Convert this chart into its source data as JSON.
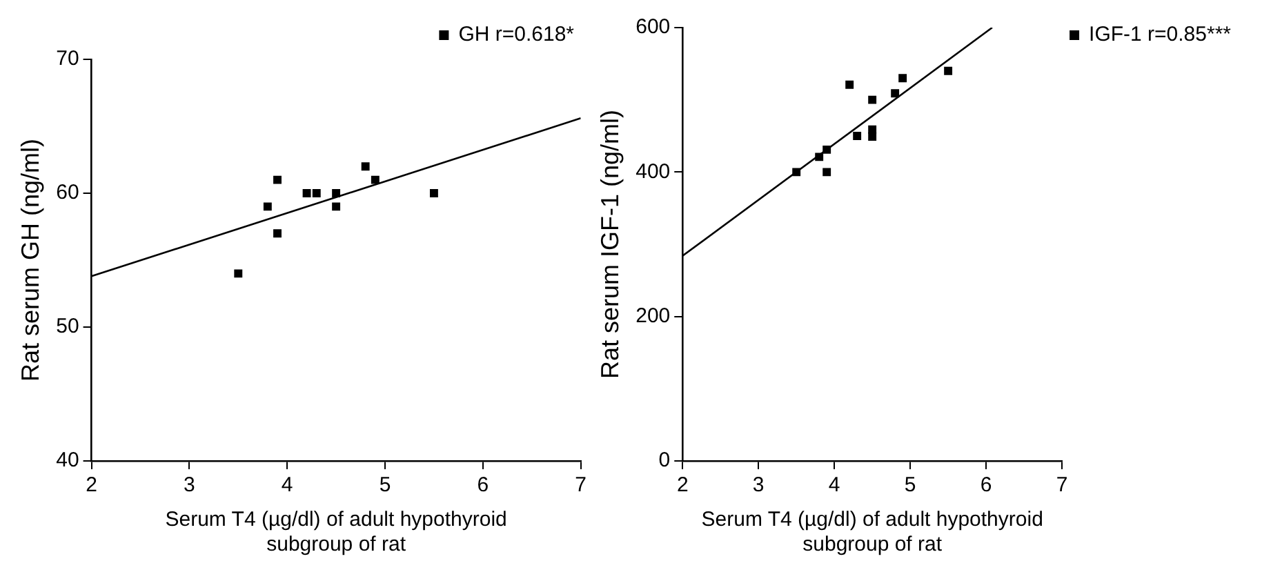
{
  "chart_data": [
    {
      "type": "scatter",
      "xlabel": "Serum T4 (µg/dl) of adult hypothyroid subgroup of rat",
      "ylabel": "Rat serum GH (ng/ml)",
      "xlim": [
        2,
        7
      ],
      "xticks": [
        2,
        3,
        4,
        5,
        6,
        7
      ],
      "ylim": [
        40,
        70
      ],
      "yticks": [
        40,
        50,
        60,
        70
      ],
      "grid": false,
      "legend": "top right",
      "series": [
        {
          "name": "GH r=0.618*",
          "color": "#000000",
          "marker": "square",
          "x": [
            3.5,
            3.8,
            3.9,
            3.9,
            4.2,
            4.3,
            4.5,
            4.5,
            4.8,
            4.9,
            5.5
          ],
          "values": [
            54,
            59,
            61,
            57,
            60,
            60,
            60,
            59,
            62,
            61,
            60
          ]
        },
        {
          "type": "line",
          "color": "#000000",
          "marker": "none",
          "x": [
            2,
            7
          ],
          "values": [
            53.8,
            65.6
          ]
        }
      ]
    },
    {
      "type": "scatter",
      "xlabel": "Serum T4 (µg/dl) of adult hypothyroid subgroup of rat",
      "ylabel": "Rat serum IGF-1 (ng/ml)",
      "xlim": [
        2,
        7
      ],
      "xticks": [
        2,
        3,
        4,
        5,
        6,
        7
      ],
      "ylim": [
        0,
        600
      ],
      "yticks": [
        0,
        200,
        400,
        600
      ],
      "grid": false,
      "legend": "right",
      "series": [
        {
          "name": "IGF-1 r=0.85***",
          "color": "#000000",
          "marker": "square",
          "x": [
            3.5,
            3.8,
            3.9,
            3.9,
            4.2,
            4.3,
            4.5,
            4.5,
            4.5,
            4.8,
            4.9,
            5.5
          ],
          "values": [
            400,
            421,
            431,
            400,
            521,
            450,
            500,
            459,
            449,
            509,
            530,
            540
          ]
        },
        {
          "type": "line",
          "color": "#000000",
          "marker": "none",
          "x": [
            2,
            6.08
          ],
          "values": [
            284,
            600
          ]
        }
      ]
    }
  ]
}
